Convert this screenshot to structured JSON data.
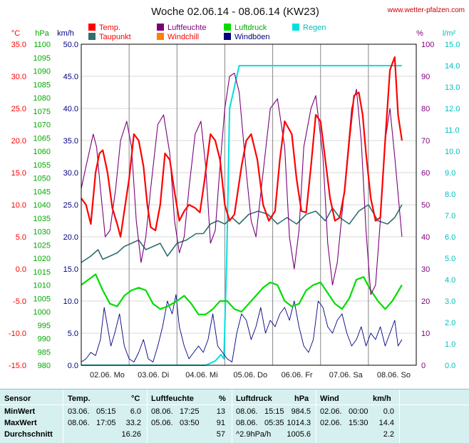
{
  "title": "Woche 02.06.14 - 08.06.14 (KW23)",
  "site": "www.wetter-pfalzen.com",
  "colors": {
    "temp": "#ff0000",
    "dew": "#2e7070",
    "hum": "#7a007a",
    "windchill": "#ff8000",
    "press": "#00dd00",
    "gust": "#000080",
    "rain": "#00e0e0"
  },
  "legend": [
    {
      "label": "Temp.",
      "color": "#ff0000"
    },
    {
      "label": "Taupunkt",
      "color": "#2e7070"
    },
    {
      "label": "Luftfeuchte",
      "color": "#7a007a"
    },
    {
      "label": "Windchill",
      "color": "#ff8000"
    },
    {
      "label": "Luftdruck",
      "color": "#00dd00"
    },
    {
      "label": "Windböen",
      "color": "#000080"
    },
    {
      "label": "Regen",
      "color": "#00e0e0"
    }
  ],
  "chart_data": {
    "type": "line",
    "grid": true,
    "x_labels": [
      "02.06. Mo",
      "03.06. Di",
      "04.06. Mi",
      "05.06. Do",
      "06.06. Fr",
      "07.06. Sa",
      "08.06. So"
    ],
    "axes": {
      "temp": {
        "unit": "°C",
        "min": -15,
        "max": 35,
        "step": 5
      },
      "press": {
        "unit": "hPa",
        "min": 980,
        "max": 1100,
        "step": 5
      },
      "wind": {
        "unit": "km/h",
        "min": 0,
        "max": 50,
        "step": 5
      },
      "hum": {
        "unit": "%",
        "min": 0,
        "max": 100,
        "step": 10
      },
      "rain": {
        "unit": "l/m²",
        "min": 0,
        "max": 15,
        "step": 1
      }
    },
    "series": [
      {
        "name": "Temp.",
        "axis": "temp",
        "key": "temp",
        "x": [
          0,
          0.1,
          0.2,
          0.3,
          0.38,
          0.45,
          0.55,
          0.65,
          0.75,
          0.82,
          0.9,
          1.0,
          1.1,
          1.2,
          1.3,
          1.38,
          1.45,
          1.55,
          1.65,
          1.75,
          1.85,
          1.95,
          2.05,
          2.15,
          2.25,
          2.38,
          2.48,
          2.58,
          2.7,
          2.8,
          2.9,
          3.0,
          3.1,
          3.2,
          3.35,
          3.45,
          3.55,
          3.68,
          3.8,
          3.92,
          4.05,
          4.15,
          4.25,
          4.4,
          4.5,
          4.6,
          4.7,
          4.8,
          4.9,
          5.0,
          5.1,
          5.2,
          5.3,
          5.4,
          5.5,
          5.6,
          5.7,
          5.8,
          5.88,
          5.95,
          6.05,
          6.15,
          6.25,
          6.35,
          6.45,
          6.55,
          6.62,
          6.7
        ],
        "y": [
          11,
          10,
          7,
          15,
          18,
          18.5,
          15,
          9.5,
          7,
          5,
          9,
          14,
          21,
          20,
          16,
          10,
          6.5,
          6,
          10,
          18,
          17,
          12,
          7.5,
          9,
          10,
          9.5,
          8.8,
          14,
          21,
          20,
          17,
          10,
          7.5,
          8.5,
          16,
          20,
          21,
          17,
          10,
          7.5,
          9,
          17,
          23,
          21,
          14,
          9,
          8.8,
          16,
          24,
          23,
          17,
          11,
          7.5,
          8,
          12,
          20,
          27,
          27.5,
          24,
          18,
          11,
          7.5,
          8,
          20,
          31,
          33,
          24,
          20
        ]
      },
      {
        "name": "Taupunkt",
        "axis": "temp",
        "key": "dew",
        "x": [
          0,
          0.2,
          0.35,
          0.45,
          0.6,
          0.75,
          0.9,
          1.05,
          1.2,
          1.35,
          1.5,
          1.65,
          1.8,
          2.0,
          2.2,
          2.4,
          2.55,
          2.7,
          2.85,
          3.0,
          3.15,
          3.3,
          3.5,
          3.7,
          3.9,
          4.1,
          4.3,
          4.5,
          4.7,
          4.9,
          5.1,
          5.25,
          5.4,
          5.6,
          5.8,
          6.0,
          6.2,
          6.4,
          6.55,
          6.7
        ],
        "y": [
          1,
          2,
          3,
          1.5,
          2,
          2.5,
          3.5,
          4,
          4.5,
          3,
          3.5,
          4,
          2,
          4,
          4.5,
          5.5,
          5.5,
          7,
          7.5,
          7,
          8,
          7,
          8.5,
          9,
          8.5,
          7,
          8,
          7,
          8.5,
          9,
          7.5,
          9.5,
          8,
          7,
          9,
          10,
          7.5,
          7,
          8,
          10
        ]
      },
      {
        "name": "Luftfeuchte",
        "axis": "hum",
        "key": "hum",
        "x": [
          0,
          0.1,
          0.25,
          0.32,
          0.4,
          0.5,
          0.6,
          0.72,
          0.82,
          0.95,
          1.05,
          1.15,
          1.25,
          1.35,
          1.45,
          1.6,
          1.72,
          1.85,
          1.95,
          2.05,
          2.15,
          2.25,
          2.38,
          2.5,
          2.6,
          2.7,
          2.8,
          2.9,
          3.0,
          3.1,
          3.2,
          3.3,
          3.45,
          3.55,
          3.65,
          3.8,
          3.95,
          4.1,
          4.25,
          4.35,
          4.45,
          4.55,
          4.65,
          4.8,
          4.9,
          5.05,
          5.15,
          5.25,
          5.35,
          5.5,
          5.65,
          5.75,
          5.85,
          5.95,
          6.05,
          6.15,
          6.25,
          6.35,
          6.45,
          6.55,
          6.7
        ],
        "y": [
          55,
          62,
          72,
          68,
          55,
          40,
          42,
          55,
          70,
          76,
          68,
          45,
          32,
          40,
          55,
          75,
          78,
          66,
          45,
          35,
          40,
          55,
          72,
          76,
          62,
          38,
          42,
          62,
          80,
          90,
          91,
          85,
          60,
          45,
          40,
          60,
          80,
          83,
          68,
          40,
          30,
          42,
          68,
          80,
          84,
          65,
          38,
          25,
          32,
          55,
          80,
          86,
          70,
          42,
          22,
          25,
          45,
          70,
          80,
          65,
          40
        ]
      },
      {
        "name": "Luftdruck",
        "axis": "press",
        "key": "press",
        "x": [
          0,
          0.15,
          0.3,
          0.45,
          0.6,
          0.75,
          0.9,
          1.05,
          1.2,
          1.35,
          1.5,
          1.65,
          1.8,
          2.0,
          2.15,
          2.3,
          2.45,
          2.6,
          2.75,
          2.9,
          3.05,
          3.2,
          3.35,
          3.5,
          3.65,
          3.8,
          3.95,
          4.1,
          4.25,
          4.4,
          4.55,
          4.7,
          4.85,
          5.0,
          5.15,
          5.3,
          5.45,
          5.6,
          5.75,
          5.9,
          6.05,
          6.2,
          6.35,
          6.5,
          6.7
        ],
        "y": [
          1010,
          1012,
          1014,
          1008,
          1003,
          1002,
          1006,
          1008,
          1009,
          1008,
          1003,
          1001,
          1002,
          1004,
          1006,
          1003,
          999,
          999,
          1001,
          1004,
          1004,
          1001,
          1000,
          1003,
          1006,
          1009,
          1011,
          1010,
          1004,
          1002,
          1003,
          1008,
          1010,
          1011,
          1007,
          1003,
          1001,
          1005,
          1012,
          1013,
          1008,
          1004,
          1001,
          1004,
          1010
        ]
      },
      {
        "name": "Windböen",
        "axis": "wind",
        "key": "gust",
        "x": [
          0,
          0.1,
          0.2,
          0.3,
          0.4,
          0.48,
          0.55,
          0.62,
          0.7,
          0.8,
          0.9,
          1.0,
          1.1,
          1.2,
          1.3,
          1.4,
          1.5,
          1.6,
          1.7,
          1.8,
          1.9,
          1.98,
          2.05,
          2.15,
          2.25,
          2.35,
          2.45,
          2.55,
          2.65,
          2.75,
          2.85,
          2.95,
          3.05,
          3.15,
          3.25,
          3.35,
          3.45,
          3.55,
          3.65,
          3.75,
          3.85,
          3.95,
          4.05,
          4.15,
          4.25,
          4.35,
          4.45,
          4.55,
          4.65,
          4.75,
          4.85,
          4.95,
          5.05,
          5.15,
          5.25,
          5.35,
          5.45,
          5.55,
          5.65,
          5.75,
          5.85,
          5.95,
          6.05,
          6.15,
          6.25,
          6.35,
          6.45,
          6.55,
          6.62,
          6.7
        ],
        "y": [
          0.5,
          1,
          2,
          1.5,
          4,
          9,
          6,
          3,
          5,
          8,
          3,
          1,
          0.5,
          2,
          4,
          1,
          0.5,
          3,
          6,
          10,
          8,
          11,
          6,
          3,
          1,
          2,
          3,
          2,
          4,
          8,
          3,
          2,
          1,
          0.5,
          5,
          8,
          7,
          4,
          6,
          9,
          5,
          7,
          6,
          8,
          9,
          7,
          10,
          6,
          3,
          2,
          4,
          10,
          9,
          6,
          5,
          7,
          8,
          5,
          3,
          4,
          6,
          3,
          5,
          4,
          6,
          3,
          5,
          7,
          3,
          4
        ]
      },
      {
        "name": "Regen",
        "axis": "rain",
        "key": "rain",
        "x": [
          0,
          2.6,
          2.8,
          2.92,
          2.98,
          3.04,
          3.1,
          3.2,
          3.3,
          6.7
        ],
        "y": [
          0,
          0,
          0.2,
          0.5,
          0.3,
          5,
          12,
          13,
          14,
          14
        ]
      }
    ]
  },
  "table": {
    "headers": {
      "sensor": "Sensor",
      "temp": "Temp.",
      "temp_unit": "°C",
      "hum": "Luftfeuchte",
      "hum_unit": "%",
      "press": "Luftdruck",
      "press_unit": "hPa",
      "wind": "Wind",
      "wind_unit": "km/h"
    },
    "rows": [
      {
        "label": "MinWert",
        "temp_date": "03.06.",
        "temp_time": "05:15",
        "temp_val": "6.0",
        "hum_date": "08.06.",
        "hum_time": "17:25",
        "hum_val": "13",
        "press_date": "08.06.",
        "press_time": "15:15",
        "press_val": "984.5",
        "wind_date": "02.06.",
        "wind_time": "00:00",
        "wind_val": "0.0"
      },
      {
        "label": "MaxWert",
        "temp_date": "08.06.",
        "temp_time": "17:05",
        "temp_val": "33.2",
        "hum_date": "05.06.",
        "hum_time": "03:50",
        "hum_val": "91",
        "press_date": "08.06.",
        "press_time": "05:35",
        "press_val": "1014.3",
        "wind_date": "02.06.",
        "wind_time": "15:30",
        "wind_val": "14.4"
      },
      {
        "label": "Durchschnitt",
        "temp_date": "",
        "temp_time": "",
        "temp_val": "16.26",
        "hum_date": "",
        "hum_time": "",
        "hum_val": "57",
        "press_date": "^2.9hPa/h",
        "press_time": "",
        "press_val": "1005.6",
        "wind_date": "",
        "wind_time": "",
        "wind_val": "2.2"
      }
    ]
  }
}
